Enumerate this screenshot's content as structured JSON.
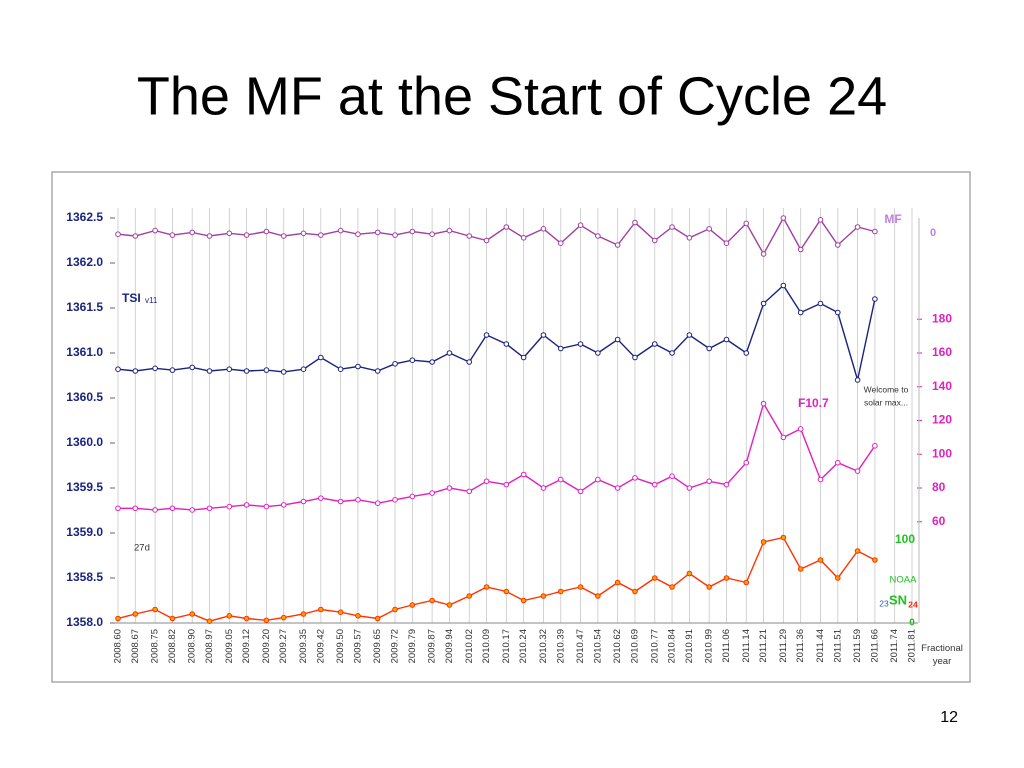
{
  "slide_title": "The MF at the Start of Cycle 24",
  "page_number": "12",
  "chart_data": {
    "type": "line",
    "x": [
      2008.6,
      2008.67,
      2008.75,
      2008.82,
      2008.9,
      2008.97,
      2009.05,
      2009.12,
      2009.2,
      2009.27,
      2009.35,
      2009.42,
      2009.5,
      2009.57,
      2009.65,
      2009.72,
      2009.79,
      2009.87,
      2009.94,
      2010.02,
      2010.09,
      2010.17,
      2010.24,
      2010.32,
      2010.39,
      2010.47,
      2010.54,
      2010.62,
      2010.69,
      2010.77,
      2010.84,
      2010.91,
      2010.99,
      2011.06,
      2011.14,
      2011.21,
      2011.29,
      2011.36,
      2011.44,
      2011.51,
      2011.59,
      2011.66
    ],
    "xlim": [
      2008.6,
      2011.81
    ],
    "xticks": [
      {
        "value": 2008.6,
        "label": "2008.60"
      },
      2008.67,
      2008.75,
      2008.82,
      {
        "value": 2008.9,
        "label": "2008.90"
      },
      2008.97,
      2009.05,
      2009.12,
      {
        "value": 2009.2,
        "label": "2009.20"
      },
      2009.27,
      2009.35,
      2009.42,
      {
        "value": 2009.5,
        "label": "2009.50"
      },
      2009.57,
      2009.65,
      2009.72,
      2009.79,
      2009.87,
      2009.94,
      2010.02,
      2010.09,
      2010.17,
      2010.24,
      2010.32,
      2010.39,
      2010.47,
      2010.54,
      2010.62,
      2010.69,
      2010.77,
      2010.84,
      2010.91,
      2010.99,
      2011.06,
      2011.14,
      2011.21,
      2011.29,
      2011.36,
      2011.44,
      2011.51,
      2011.59,
      2011.66,
      2011.74,
      2011.81
    ],
    "xlabel": "Fractional year",
    "ylim": [
      1358.0,
      1362.5
    ],
    "yticks": [
      {
        "value": 1358.0,
        "label": "1358.0"
      },
      1358.5,
      {
        "value": 1359.0,
        "label": "1359.0"
      },
      1359.5,
      {
        "value": 1360.0,
        "label": "1360.0"
      },
      1360.5,
      {
        "value": 1361.0,
        "label": "1361.0"
      },
      1361.5,
      {
        "value": 1362.0,
        "label": "1362.0"
      },
      1362.5
    ],
    "y2lim": [
      0,
      240
    ],
    "y2ticks": [
      60,
      80,
      100,
      120,
      140,
      160,
      180
    ],
    "grid": true,
    "series": [
      {
        "name": "MF",
        "color": "#a040a0",
        "axis": "y",
        "values": [
          1362.32,
          1362.3,
          1362.36,
          1362.31,
          1362.34,
          1362.3,
          1362.33,
          1362.31,
          1362.35,
          1362.3,
          1362.33,
          1362.31,
          1362.36,
          1362.32,
          1362.34,
          1362.31,
          1362.35,
          1362.32,
          1362.36,
          1362.3,
          1362.25,
          1362.4,
          1362.28,
          1362.38,
          1362.22,
          1362.42,
          1362.3,
          1362.2,
          1362.45,
          1362.25,
          1362.4,
          1362.28,
          1362.38,
          1362.22,
          1362.44,
          1362.1,
          1362.5,
          1362.15,
          1362.48,
          1362.2,
          1362.4,
          1362.35
        ]
      },
      {
        "name": "TSI",
        "color": "#1a237e",
        "axis": "y",
        "values": [
          1360.82,
          1360.8,
          1360.83,
          1360.81,
          1360.84,
          1360.8,
          1360.82,
          1360.8,
          1360.81,
          1360.79,
          1360.82,
          1360.95,
          1360.82,
          1360.85,
          1360.8,
          1360.88,
          1360.92,
          1360.9,
          1361.0,
          1360.9,
          1361.2,
          1361.1,
          1360.95,
          1361.2,
          1361.05,
          1361.1,
          1361.0,
          1361.15,
          1360.95,
          1361.1,
          1361.0,
          1361.2,
          1361.05,
          1361.15,
          1361.0,
          1361.55,
          1361.75,
          1361.45,
          1361.55,
          1361.45,
          1360.7,
          1361.6
        ]
      },
      {
        "name": "F10.7",
        "color": "#e020c0",
        "axis": "y2",
        "values": [
          68,
          68,
          67,
          68,
          67,
          68,
          69,
          70,
          69,
          70,
          72,
          74,
          72,
          73,
          71,
          73,
          75,
          77,
          80,
          78,
          84,
          82,
          88,
          80,
          85,
          78,
          85,
          80,
          86,
          82,
          87,
          80,
          84,
          82,
          95,
          130,
          110,
          115,
          85,
          95,
          90,
          105
        ]
      },
      {
        "name": "SN",
        "color": "#ff3300",
        "axis": "y",
        "values": [
          1358.05,
          1358.1,
          1358.15,
          1358.05,
          1358.1,
          1358.02,
          1358.08,
          1358.05,
          1358.03,
          1358.06,
          1358.1,
          1358.15,
          1358.12,
          1358.08,
          1358.05,
          1358.15,
          1358.2,
          1358.25,
          1358.2,
          1358.3,
          1358.4,
          1358.35,
          1358.25,
          1358.3,
          1358.35,
          1358.4,
          1358.3,
          1358.45,
          1358.35,
          1358.5,
          1358.4,
          1358.55,
          1358.4,
          1358.5,
          1358.45,
          1358.9,
          1358.95,
          1358.6,
          1358.7,
          1358.5,
          1358.8,
          1358.7
        ]
      }
    ],
    "annotations": [
      "MF",
      "0",
      "TSI",
      "v11",
      "F10.7",
      "Welcome to",
      "solar max...",
      "27d",
      "100",
      "NOAA",
      "SN",
      "23",
      "24",
      "0"
    ]
  }
}
